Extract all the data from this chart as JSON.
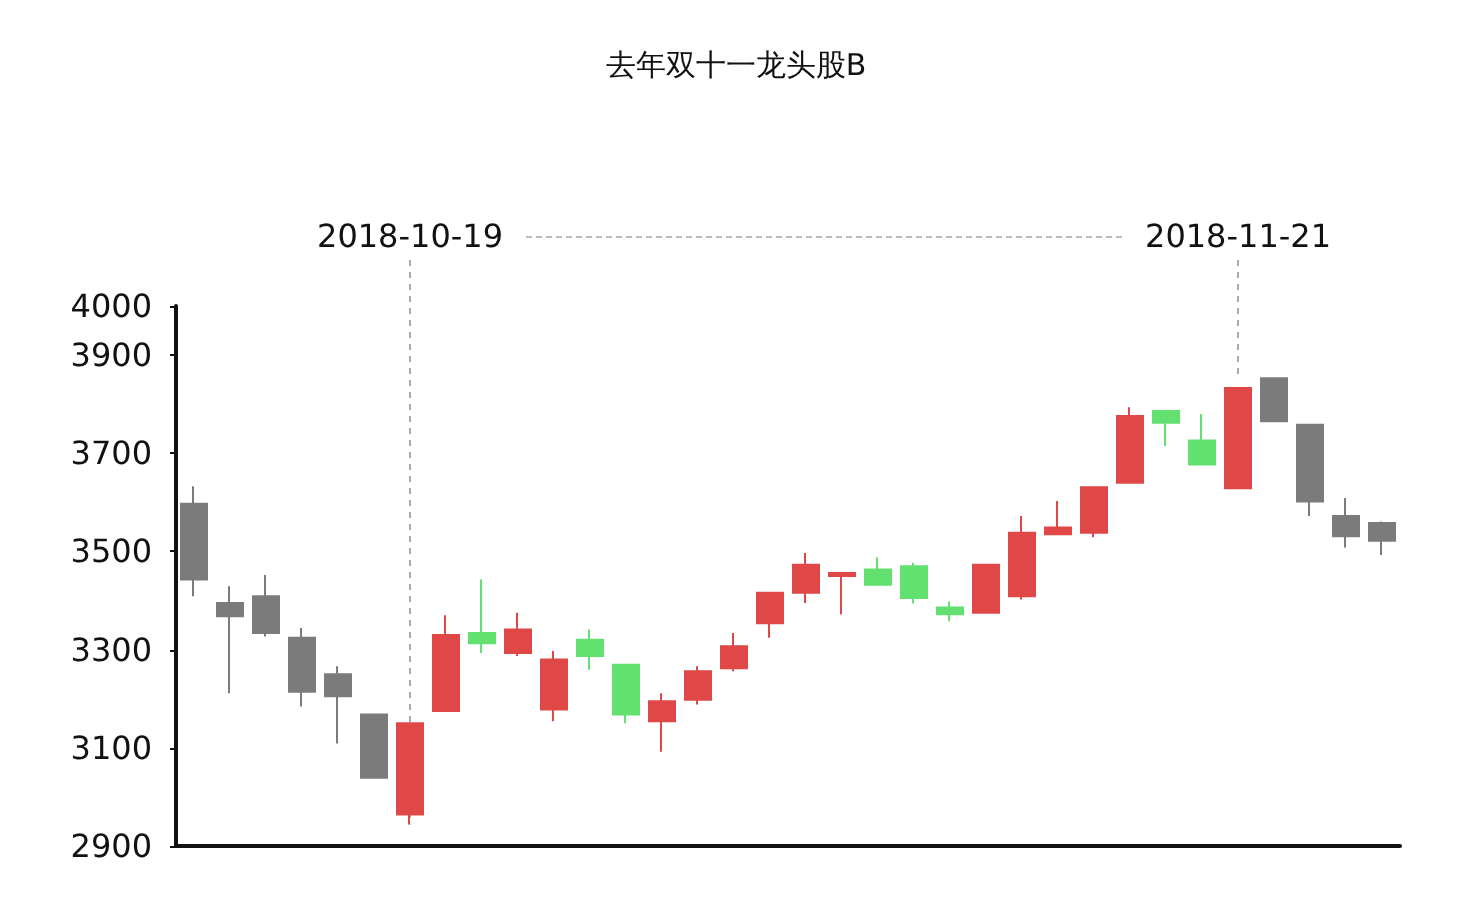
{
  "chart_data": {
    "type": "candlestick",
    "title": "去年双十一龙头股B",
    "categories": [
      null,
      null,
      null,
      null,
      null,
      null,
      null,
      null,
      null,
      null,
      null,
      null,
      null,
      null,
      null,
      null,
      null,
      null,
      null,
      null,
      null,
      null,
      null,
      null,
      null,
      null,
      null,
      null,
      null,
      null,
      null,
      null,
      null,
      null
    ],
    "ohlc": [
      [
        3597,
        3633,
        3409,
        3443
      ],
      [
        3395,
        3429,
        3211,
        3368
      ],
      [
        3409,
        3452,
        3327,
        3334
      ],
      [
        3324,
        3344,
        3184,
        3214
      ],
      [
        3250,
        3266,
        3109,
        3205
      ],
      [
        3168,
        3168,
        3039,
        3039
      ],
      [
        2964,
        3150,
        2944,
        3150
      ],
      [
        3175,
        3370,
        3175,
        3330
      ],
      [
        3334,
        3443,
        3293,
        3313
      ],
      [
        3293,
        3375,
        3287,
        3341
      ],
      [
        3178,
        3297,
        3154,
        3280
      ],
      [
        3320,
        3341,
        3259,
        3287
      ],
      [
        3269,
        3269,
        3150,
        3168
      ],
      [
        3154,
        3211,
        3092,
        3195
      ],
      [
        3198,
        3266,
        3188,
        3256
      ],
      [
        3262,
        3334,
        3256,
        3307
      ],
      [
        3354,
        3418,
        3324,
        3416
      ],
      [
        3416,
        3497,
        3395,
        3473
      ],
      [
        3450,
        3456,
        3372,
        3456
      ],
      [
        3463,
        3488,
        3432,
        3432
      ],
      [
        3470,
        3477,
        3394,
        3405
      ],
      [
        3386,
        3398,
        3358,
        3372
      ],
      [
        3375,
        3473,
        3375,
        3473
      ],
      [
        3409,
        3572,
        3402,
        3538
      ],
      [
        3535,
        3603,
        3535,
        3549
      ],
      [
        3538,
        3631,
        3529,
        3631
      ],
      [
        3640,
        3794,
        3640,
        3776
      ],
      [
        3786,
        3786,
        3715,
        3762
      ],
      [
        3726,
        3780,
        3677,
        3677
      ],
      [
        3629,
        3833,
        3629,
        3833
      ],
      [
        3853,
        3853,
        3765,
        3765
      ],
      [
        3758,
        3758,
        3572,
        3602
      ],
      [
        3572,
        3609,
        3508,
        3531
      ],
      [
        3558,
        3561,
        3493,
        3522
      ]
    ],
    "colors": [
      "#7b7b7b",
      "#7b7b7b",
      "#7b7b7b",
      "#7b7b7b",
      "#7b7b7b",
      "#7b7b7b",
      "#e04848",
      "#e04848",
      "#62e070",
      "#e04848",
      "#e04848",
      "#62e070",
      "#62e070",
      "#e04848",
      "#e04848",
      "#e04848",
      "#e04848",
      "#e04848",
      "#e04848",
      "#62e070",
      "#62e070",
      "#62e070",
      "#e04848",
      "#e04848",
      "#e04848",
      "#e04848",
      "#e04848",
      "#62e070",
      "#62e070",
      "#e04848",
      "#7b7b7b",
      "#7b7b7b",
      "#7b7b7b",
      "#7b7b7b"
    ],
    "ylim": [
      2900,
      4000
    ],
    "yticks": [
      2900,
      3100,
      3300,
      3500,
      3700,
      3900,
      4000
    ],
    "annotations": [
      "2018-10-19",
      "2018-11-21"
    ],
    "grid": false
  }
}
